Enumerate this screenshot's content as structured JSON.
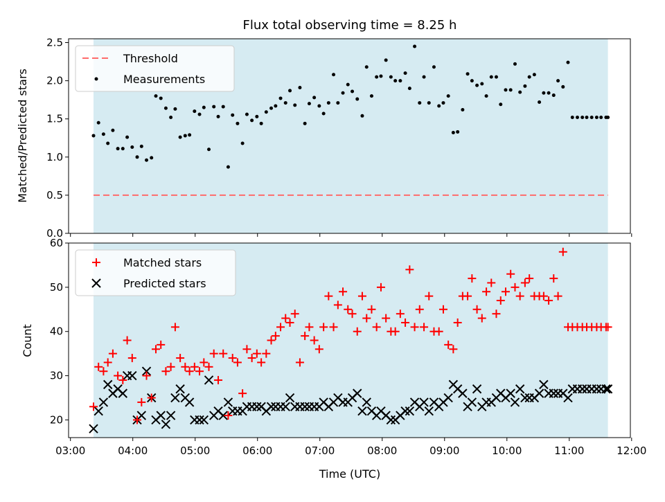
{
  "chart_data": [
    {
      "type": "scatter",
      "title": "Flux total observing time = 8.25 h",
      "ylabel": "Matched/Predicted stars",
      "ylim": [
        0,
        2.55
      ],
      "xlim_hours": [
        2.97,
        11.98
      ],
      "yticks": [
        "0.0",
        "0.5",
        "1.0",
        "1.5",
        "2.0",
        "2.5"
      ],
      "observing_window_hours": [
        3.37,
        11.62
      ],
      "threshold": {
        "name": "Threshold",
        "value": 0.5,
        "color": "#ff6b6b"
      },
      "series": [
        {
          "name": "Measurements",
          "color": "#000000",
          "x": [
            3.37,
            3.45,
            3.53,
            3.6,
            3.68,
            3.76,
            3.84,
            3.91,
            3.99,
            4.07,
            4.14,
            4.22,
            4.3,
            4.37,
            4.45,
            4.53,
            4.61,
            4.68,
            4.76,
            4.84,
            4.91,
            4.99,
            5.07,
            5.14,
            5.22,
            5.3,
            5.37,
            5.45,
            5.53,
            5.6,
            5.68,
            5.76,
            5.83,
            5.91,
            5.99,
            6.06,
            6.14,
            6.22,
            6.29,
            6.37,
            6.45,
            6.52,
            6.6,
            6.68,
            6.76,
            6.83,
            6.91,
            6.99,
            7.06,
            7.14,
            7.22,
            7.29,
            7.37,
            7.45,
            7.52,
            7.6,
            7.68,
            7.75,
            7.83,
            7.91,
            7.98,
            8.06,
            8.14,
            8.21,
            8.29,
            8.37,
            8.44,
            8.52,
            8.6,
            8.67,
            8.75,
            8.83,
            8.91,
            8.98,
            9.06,
            9.14,
            9.21,
            9.29,
            9.37,
            9.44,
            9.52,
            9.6,
            9.67,
            9.75,
            9.83,
            9.9,
            9.98,
            10.06,
            10.13,
            10.21,
            10.29,
            10.36,
            10.44,
            10.52,
            10.59,
            10.67,
            10.75,
            10.82,
            10.9,
            10.98,
            11.05,
            11.13,
            11.21,
            11.28,
            11.36,
            11.44,
            11.51,
            11.59,
            11.62
          ],
          "y": [
            1.28,
            1.45,
            1.3,
            1.18,
            1.35,
            1.11,
            1.11,
            1.26,
            1.13,
            1.0,
            1.14,
            0.96,
            0.99,
            1.8,
            1.77,
            1.64,
            1.52,
            1.63,
            1.26,
            1.28,
            1.29,
            1.6,
            1.56,
            1.65,
            1.1,
            1.66,
            1.53,
            1.66,
            0.87,
            1.55,
            1.44,
            1.18,
            1.56,
            1.48,
            1.53,
            1.44,
            1.59,
            1.64,
            1.67,
            1.77,
            1.71,
            1.87,
            1.68,
            1.91,
            1.44,
            1.7,
            1.78,
            1.67,
            1.57,
            1.71,
            2.08,
            1.71,
            1.84,
            1.95,
            1.86,
            1.76,
            1.54,
            2.18,
            1.8,
            2.05,
            2.06,
            2.27,
            2.05,
            2.0,
            2.0,
            2.1,
            1.9,
            2.45,
            1.71,
            2.05,
            1.71,
            2.18,
            1.67,
            1.71,
            1.8,
            1.32,
            1.33,
            1.62,
            2.09,
            2.0,
            1.94,
            1.96,
            1.8,
            2.05,
            2.05,
            1.69,
            1.88,
            1.88,
            2.22,
            1.85,
            1.93,
            2.05,
            2.08,
            1.72,
            1.84,
            1.84,
            1.81,
            2.0,
            1.92,
            2.24,
            1.52,
            1.52,
            1.52,
            1.52,
            1.52,
            1.52,
            1.52,
            1.52,
            1.52
          ]
        }
      ]
    },
    {
      "type": "scatter",
      "xlabel": "Time (UTC)",
      "ylabel": "Count",
      "ylim": [
        16,
        60
      ],
      "xlim_hours": [
        2.97,
        11.98
      ],
      "xticks": [
        "03:00",
        "04:00",
        "05:00",
        "06:00",
        "07:00",
        "08:00",
        "09:00",
        "10:00",
        "11:00",
        "12:00"
      ],
      "yticks": [
        "20",
        "30",
        "40",
        "50",
        "60"
      ],
      "observing_window_hours": [
        3.37,
        11.62
      ],
      "series": [
        {
          "name": "Matched stars",
          "color": "#ff0000",
          "x": [
            3.37,
            3.45,
            3.53,
            3.6,
            3.68,
            3.76,
            3.84,
            3.91,
            3.99,
            4.07,
            4.14,
            4.22,
            4.3,
            4.37,
            4.45,
            4.53,
            4.61,
            4.68,
            4.76,
            4.84,
            4.91,
            4.99,
            5.07,
            5.14,
            5.22,
            5.3,
            5.37,
            5.45,
            5.53,
            5.6,
            5.68,
            5.76,
            5.83,
            5.91,
            5.99,
            6.06,
            6.14,
            6.22,
            6.29,
            6.37,
            6.45,
            6.52,
            6.6,
            6.68,
            6.76,
            6.83,
            6.91,
            6.99,
            7.06,
            7.14,
            7.22,
            7.29,
            7.37,
            7.45,
            7.52,
            7.6,
            7.68,
            7.75,
            7.83,
            7.91,
            7.98,
            8.06,
            8.14,
            8.21,
            8.29,
            8.37,
            8.44,
            8.52,
            8.6,
            8.67,
            8.75,
            8.83,
            8.91,
            8.98,
            9.06,
            9.14,
            9.21,
            9.29,
            9.37,
            9.44,
            9.52,
            9.6,
            9.67,
            9.75,
            9.83,
            9.9,
            9.98,
            10.06,
            10.13,
            10.21,
            10.29,
            10.36,
            10.44,
            10.52,
            10.59,
            10.67,
            10.75,
            10.82,
            10.9,
            10.98,
            11.05,
            11.13,
            11.21,
            11.28,
            11.36,
            11.44,
            11.51,
            11.59,
            11.62
          ],
          "y": [
            23,
            32,
            31,
            33,
            35,
            30,
            29,
            38,
            34,
            20,
            24,
            30,
            25,
            36,
            37,
            31,
            32,
            41,
            34,
            32,
            31,
            32,
            31,
            33,
            32,
            35,
            29,
            35,
            21,
            34,
            33,
            26,
            36,
            34,
            35,
            33,
            35,
            38,
            39,
            41,
            43,
            42,
            44,
            33,
            39,
            41,
            38,
            36,
            41,
            48,
            41,
            46,
            49,
            45,
            44,
            40,
            48,
            43,
            45,
            41,
            50,
            43,
            40,
            40,
            44,
            42,
            54,
            41,
            45,
            41,
            48,
            40,
            40,
            45,
            37,
            36,
            42,
            48,
            48,
            52,
            45,
            43,
            49,
            51,
            44,
            47,
            49,
            53,
            50,
            48,
            51,
            52,
            48,
            48,
            48,
            47,
            52,
            48,
            58,
            41,
            41,
            41,
            41,
            41,
            41,
            41,
            41,
            41,
            41
          ]
        },
        {
          "name": "Predicted stars",
          "color": "#000000",
          "x": [
            3.37,
            3.45,
            3.53,
            3.6,
            3.68,
            3.76,
            3.84,
            3.91,
            3.99,
            4.07,
            4.14,
            4.22,
            4.3,
            4.37,
            4.45,
            4.53,
            4.61,
            4.68,
            4.76,
            4.84,
            4.91,
            4.99,
            5.07,
            5.14,
            5.22,
            5.3,
            5.37,
            5.45,
            5.53,
            5.6,
            5.68,
            5.76,
            5.83,
            5.91,
            5.99,
            6.06,
            6.14,
            6.22,
            6.29,
            6.37,
            6.45,
            6.52,
            6.6,
            6.68,
            6.76,
            6.83,
            6.91,
            6.99,
            7.06,
            7.14,
            7.22,
            7.29,
            7.37,
            7.45,
            7.52,
            7.6,
            7.68,
            7.75,
            7.83,
            7.91,
            7.98,
            8.06,
            8.14,
            8.21,
            8.29,
            8.37,
            8.44,
            8.52,
            8.6,
            8.67,
            8.75,
            8.83,
            8.91,
            8.98,
            9.06,
            9.14,
            9.21,
            9.29,
            9.37,
            9.44,
            9.52,
            9.6,
            9.67,
            9.75,
            9.83,
            9.9,
            9.98,
            10.06,
            10.13,
            10.21,
            10.29,
            10.36,
            10.44,
            10.52,
            10.59,
            10.67,
            10.75,
            10.82,
            10.9,
            10.98,
            11.05,
            11.13,
            11.21,
            11.28,
            11.36,
            11.44,
            11.51,
            11.59,
            11.62
          ],
          "y": [
            18,
            22,
            24,
            28,
            26,
            27,
            26,
            30,
            30,
            20,
            21,
            31,
            25,
            20,
            21,
            19,
            21,
            25,
            27,
            25,
            24,
            20,
            20,
            20,
            29,
            21,
            22,
            21,
            24,
            22,
            22,
            22,
            23,
            23,
            23,
            23,
            22,
            23,
            23,
            23,
            23,
            25,
            23,
            23,
            23,
            23,
            23,
            23,
            24,
            23,
            24,
            25,
            24,
            24,
            25,
            26,
            22,
            24,
            22,
            21,
            22,
            21,
            20,
            20,
            21,
            22,
            22,
            24,
            23,
            24,
            22,
            24,
            23,
            24,
            25,
            28,
            27,
            26,
            23,
            24,
            27,
            23,
            24,
            24,
            25,
            26,
            25,
            26,
            24,
            27,
            25,
            25,
            25,
            26,
            28,
            26,
            26,
            26,
            26,
            25,
            27,
            27,
            27,
            27,
            27,
            27,
            27,
            27,
            27
          ]
        }
      ]
    }
  ]
}
